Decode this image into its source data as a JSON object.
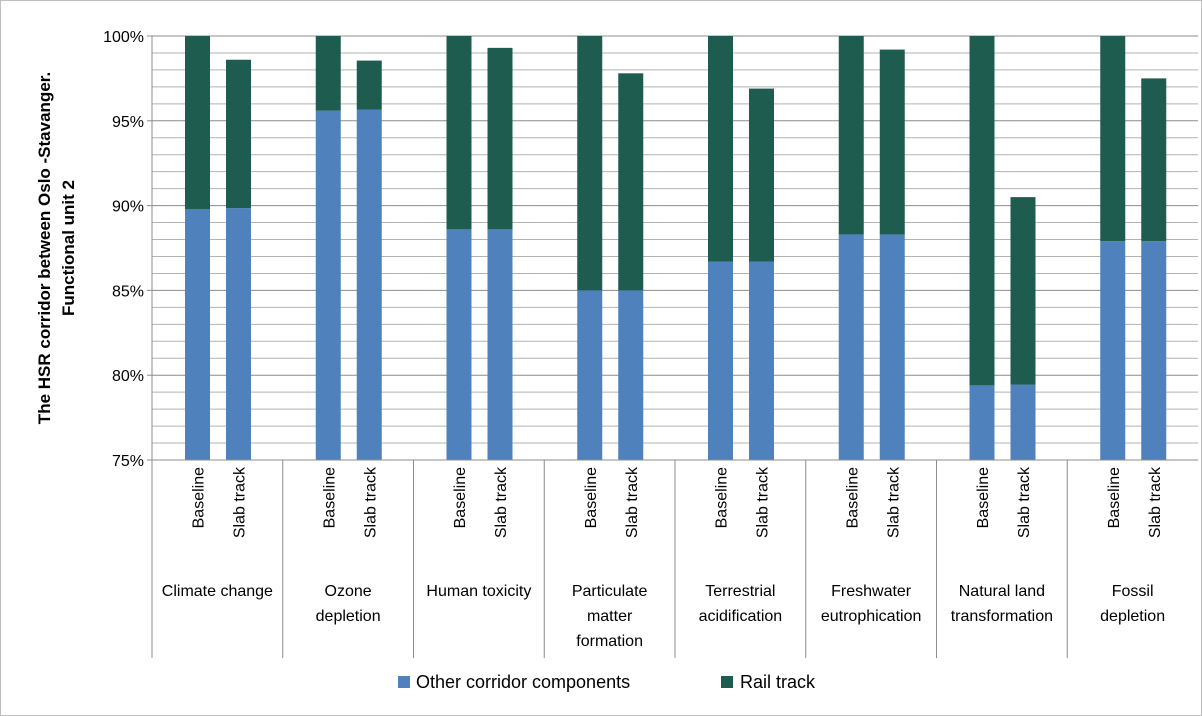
{
  "chart_data": {
    "type": "bar",
    "stacked": true,
    "ylabel": [
      "The HSR corridor between Oslo -Stavanger.",
      "Functional unit 2"
    ],
    "ylim": [
      75,
      100
    ],
    "yticks": [
      "75%",
      "80%",
      "85%",
      "90%",
      "95%",
      "100%"
    ],
    "grid": true,
    "legend_position": "bottom",
    "groups": [
      {
        "label": [
          "Climate change"
        ],
        "bars": [
          {
            "label": "Baseline",
            "other": 89.8,
            "rail": 10.2
          },
          {
            "label": "Slab track",
            "other": 89.85,
            "rail": 8.75
          }
        ]
      },
      {
        "label": [
          "Ozone",
          "depletion"
        ],
        "bars": [
          {
            "label": "Baseline",
            "other": 95.6,
            "rail": 4.4
          },
          {
            "label": "Slab track",
            "other": 95.65,
            "rail": 2.9
          }
        ]
      },
      {
        "label": [
          "Human toxicity"
        ],
        "bars": [
          {
            "label": "Baseline",
            "other": 88.6,
            "rail": 11.4
          },
          {
            "label": "Slab track",
            "other": 88.6,
            "rail": 10.7
          }
        ]
      },
      {
        "label": [
          "Particulate",
          "matter",
          "formation"
        ],
        "bars": [
          {
            "label": "Baseline",
            "other": 85.0,
            "rail": 15.0
          },
          {
            "label": "Slab track",
            "other": 85.0,
            "rail": 12.8
          }
        ]
      },
      {
        "label": [
          "Terrestrial",
          "acidification"
        ],
        "bars": [
          {
            "label": "Baseline",
            "other": 86.7,
            "rail": 13.3
          },
          {
            "label": "Slab track",
            "other": 86.7,
            "rail": 10.2
          }
        ]
      },
      {
        "label": [
          "Freshwater",
          "eutrophication"
        ],
        "bars": [
          {
            "label": "Baseline",
            "other": 88.3,
            "rail": 11.7
          },
          {
            "label": "Slab track",
            "other": 88.3,
            "rail": 10.9
          }
        ]
      },
      {
        "label": [
          "Natural land",
          "transformation"
        ],
        "bars": [
          {
            "label": "Baseline",
            "other": 79.4,
            "rail": 20.6
          },
          {
            "label": "Slab track",
            "other": 79.45,
            "rail": 11.05
          }
        ]
      },
      {
        "label": [
          "Fossil",
          "depletion"
        ],
        "bars": [
          {
            "label": "Baseline",
            "other": 87.9,
            "rail": 12.1
          },
          {
            "label": "Slab track",
            "other": 87.9,
            "rail": 9.6
          }
        ]
      }
    ],
    "series": [
      {
        "key": "other",
        "name": "Other corridor components",
        "color": "#4f81bd"
      },
      {
        "key": "rail",
        "name": "Rail track",
        "color": "#1e5c50"
      }
    ]
  }
}
